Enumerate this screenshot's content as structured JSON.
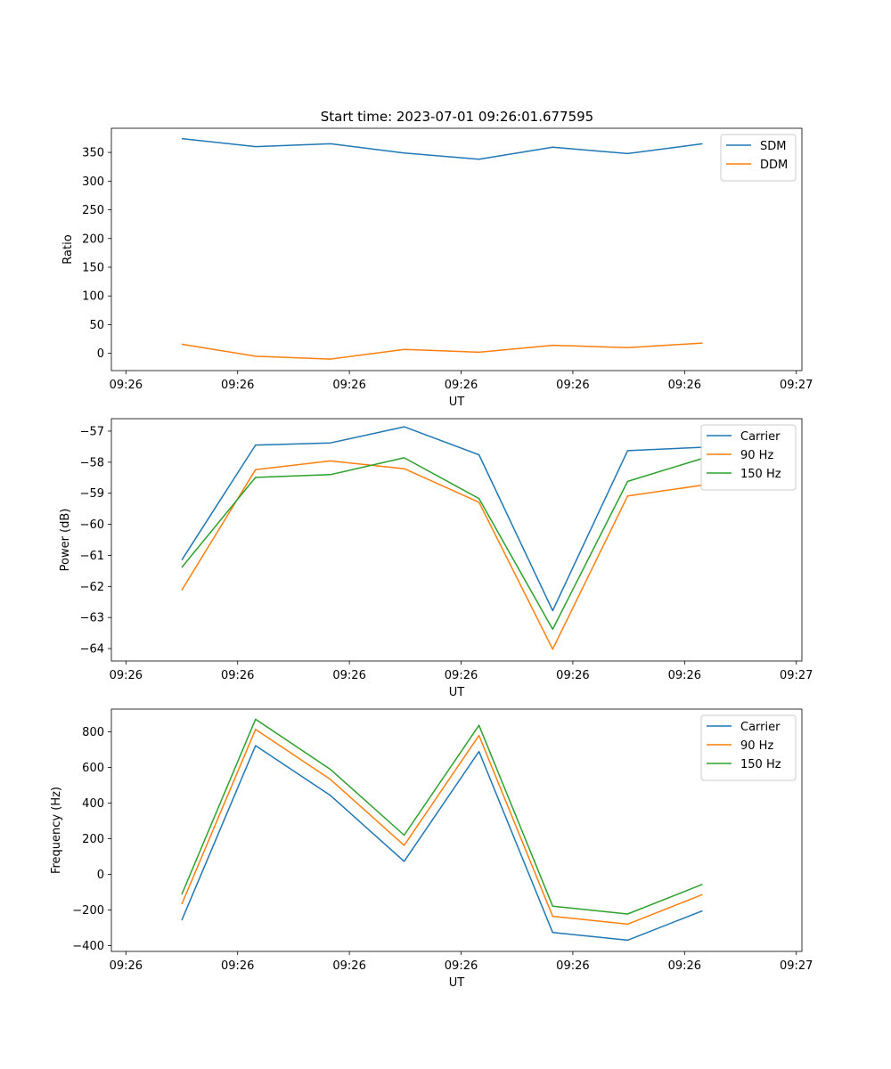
{
  "figure_title": "Start time: 2023-07-01 09:26:01.677595",
  "colors": {
    "blue": "#1f77b4",
    "orange": "#ff7f0e",
    "green": "#2ca02c"
  },
  "chart_data": [
    {
      "type": "line",
      "title": "Start time: 2023-07-01 09:26:01.677595",
      "xlabel": "UT",
      "ylabel": "Ratio",
      "x": [
        0.5,
        1.16,
        1.83,
        2.49,
        3.16,
        3.82,
        4.49,
        5.16
      ],
      "xlim": [
        -0.13,
        6.05
      ],
      "xticks": [
        0,
        1,
        2,
        3,
        4,
        5,
        6
      ],
      "xtick_labels": [
        "09:26",
        "09:26",
        "09:26",
        "09:26",
        "09:26",
        "09:26",
        "09:27"
      ],
      "ylim": [
        -30,
        392
      ],
      "yticks": [
        0,
        50,
        100,
        150,
        200,
        250,
        300,
        350
      ],
      "ytick_labels": [
        "0",
        "50",
        "100",
        "150",
        "200",
        "250",
        "300",
        "350"
      ],
      "legend": "top-right",
      "series": [
        {
          "name": "SDM",
          "color": "#1f77b4",
          "values": [
            374,
            360,
            365,
            349,
            338,
            359,
            348,
            365
          ]
        },
        {
          "name": "DDM",
          "color": "#ff7f0e",
          "values": [
            16,
            -5,
            -10,
            7,
            2,
            14,
            10,
            18
          ]
        }
      ]
    },
    {
      "type": "line",
      "title": "",
      "xlabel": "UT",
      "ylabel": "Power (dB)",
      "x": [
        0.5,
        1.16,
        1.83,
        2.49,
        3.16,
        3.82,
        4.49,
        5.16
      ],
      "xlim": [
        -0.13,
        6.05
      ],
      "xticks": [
        0,
        1,
        2,
        3,
        4,
        5,
        6
      ],
      "xtick_labels": [
        "09:26",
        "09:26",
        "09:26",
        "09:26",
        "09:26",
        "09:26",
        "09:27"
      ],
      "ylim": [
        -64.4,
        -56.6
      ],
      "yticks": [
        -64,
        -63,
        -62,
        -61,
        -60,
        -59,
        -58,
        -57
      ],
      "ytick_labels": [
        "−64",
        "−63",
        "−62",
        "−61",
        "−60",
        "−59",
        "−58",
        "−57"
      ],
      "legend": "top-right",
      "series": [
        {
          "name": "Carrier",
          "color": "#1f77b4",
          "values": [
            -61.15,
            -57.45,
            -57.38,
            -56.86,
            -57.76,
            -62.78,
            -57.63,
            -57.52
          ]
        },
        {
          "name": "90 Hz",
          "color": "#ff7f0e",
          "values": [
            -62.12,
            -58.24,
            -57.96,
            -58.21,
            -59.29,
            -64.02,
            -59.09,
            -58.74
          ]
        },
        {
          "name": "150 Hz",
          "color": "#2ca02c",
          "values": [
            -61.39,
            -58.49,
            -58.4,
            -57.86,
            -59.17,
            -63.38,
            -58.62,
            -57.88
          ]
        }
      ]
    },
    {
      "type": "line",
      "title": "",
      "xlabel": "UT",
      "ylabel": "Frequency (Hz)",
      "x": [
        0.5,
        1.16,
        1.83,
        2.49,
        3.16,
        3.82,
        4.49,
        5.16
      ],
      "xlim": [
        -0.13,
        6.05
      ],
      "xticks": [
        0,
        1,
        2,
        3,
        4,
        5,
        6
      ],
      "xtick_labels": [
        "09:26",
        "09:26",
        "09:26",
        "09:26",
        "09:26",
        "09:26",
        "09:27"
      ],
      "ylim": [
        -433,
        928
      ],
      "yticks": [
        -400,
        -200,
        0,
        200,
        400,
        600,
        800
      ],
      "ytick_labels": [
        "−400",
        "−200",
        "0",
        "200",
        "400",
        "600",
        "800"
      ],
      "legend": "top-right",
      "series": [
        {
          "name": "Carrier",
          "color": "#1f77b4",
          "values": [
            -258,
            723,
            443,
            73,
            690,
            -327,
            -370,
            -205
          ]
        },
        {
          "name": "90 Hz",
          "color": "#ff7f0e",
          "values": [
            -168,
            814,
            533,
            163,
            780,
            -236,
            -280,
            -114
          ]
        },
        {
          "name": "150 Hz",
          "color": "#2ca02c",
          "values": [
            -113,
            871,
            590,
            220,
            837,
            -179,
            -223,
            -56
          ]
        }
      ]
    }
  ]
}
